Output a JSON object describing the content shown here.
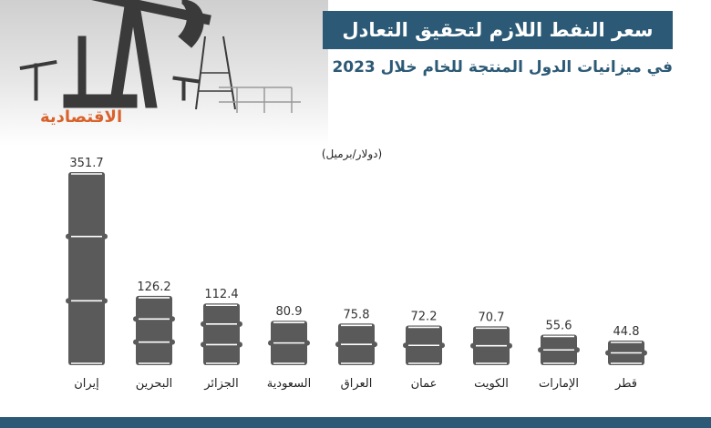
{
  "header": {
    "title": "سعر النفط اللازم لتحقيق التعادل",
    "subtitle": "في ميزانيات الدول المنتجة للخام خلال 2023",
    "logo": "الاقتصادية",
    "unit": "(دولار/برميل)"
  },
  "colors": {
    "title_bg": "#2c5a76",
    "barrel": "#5a5a5a",
    "barrel_rim": "#ffffff",
    "logo": "#d9622b"
  },
  "chart_data": {
    "type": "bar",
    "categories": [
      "إيران",
      "البحرين",
      "الجزائر",
      "السعودية",
      "العراق",
      "عمان",
      "الكويت",
      "الإمارات",
      "قطر"
    ],
    "values": [
      351.7,
      126.2,
      112.4,
      80.9,
      75.8,
      72.2,
      70.7,
      55.6,
      44.8
    ],
    "value_labels": [
      "351.7",
      "126.2",
      "112.4",
      "80.9",
      "75.8",
      "72.2",
      "70.7",
      "55.6",
      "44.8"
    ],
    "ylim": [
      0,
      351.7
    ],
    "grid": false,
    "legend": "none"
  }
}
